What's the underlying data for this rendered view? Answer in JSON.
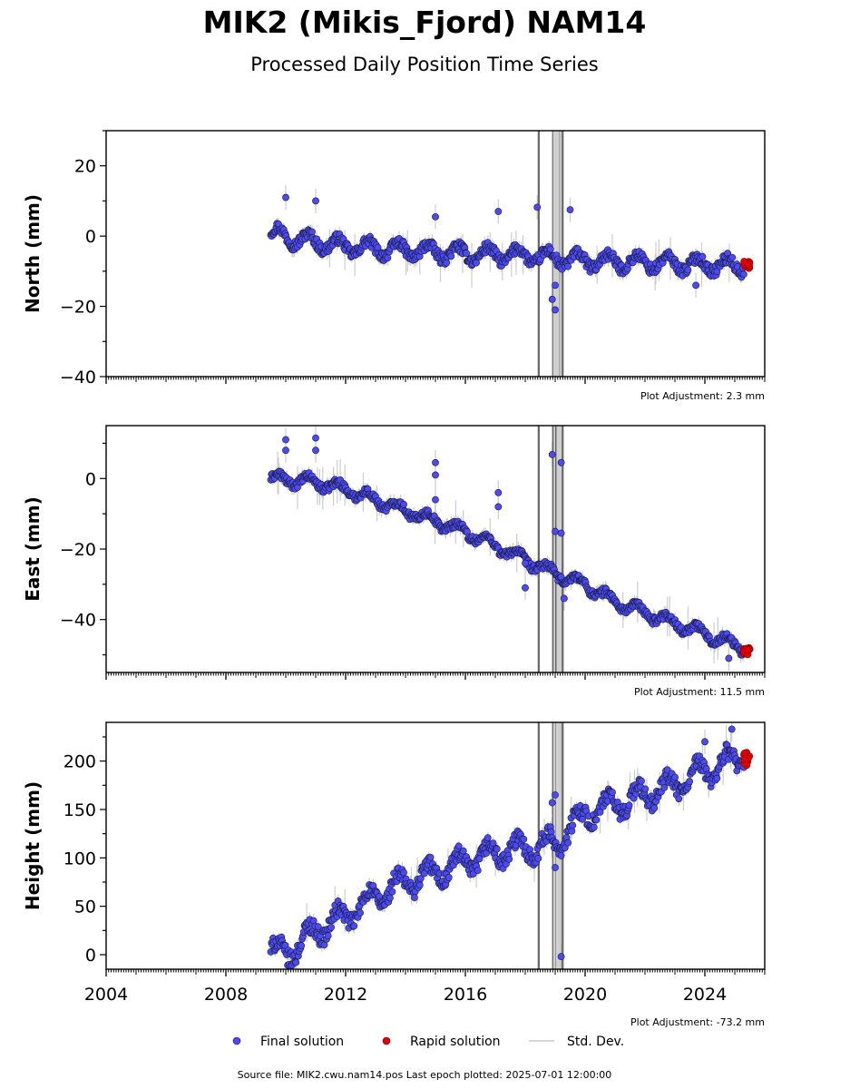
{
  "title": "MIK2 (Mikis_Fjord) NAM14",
  "subtitle": "Processed Daily Position Time Series",
  "source_text": "Source file: MIK2.cwu.nam14.pos  Last epoch plotted: 2025-07-01 12:00:00",
  "legend": {
    "final": "Final solution",
    "rapid": "Rapid solution",
    "std": "Std. Dev."
  },
  "colors": {
    "final": "#4b4bf0",
    "final_edge": "#1a1a40",
    "rapid": "#e00000",
    "std": "#cccccc",
    "events": "#666666"
  },
  "chart_data": [
    {
      "type": "scatter",
      "ylabel": "North (mm)",
      "adjustment": "Plot Adjustment: 2.3 mm",
      "xlim": [
        2004,
        2026
      ],
      "ylim": [
        -40,
        30
      ],
      "yticks": [
        -40,
        -20,
        0,
        20
      ],
      "ytick_labels": [
        "−40",
        "−20",
        "0",
        "20"
      ],
      "event_lines": [
        2018.45,
        2018.93,
        2019.03,
        2019.17,
        2019.25
      ],
      "final_trend": [
        [
          2009.5,
          1
        ],
        [
          2010.5,
          -1
        ],
        [
          2012,
          -3
        ],
        [
          2014,
          -4
        ],
        [
          2016,
          -5
        ],
        [
          2018,
          -5.5
        ],
        [
          2020,
          -7
        ],
        [
          2022,
          -7.5
        ],
        [
          2025.3,
          -8.5
        ]
      ],
      "final_wiggle": 2.5,
      "final_outliers": [
        [
          2010.0,
          11
        ],
        [
          2011.0,
          10
        ],
        [
          2015.0,
          5.5
        ],
        [
          2017.1,
          7
        ],
        [
          2018.4,
          8.2
        ],
        [
          2018.9,
          -18
        ],
        [
          2019.0,
          -21
        ],
        [
          2019.0,
          -14
        ],
        [
          2019.5,
          7.5
        ],
        [
          2023.7,
          -14
        ]
      ],
      "rapid_range": [
        2025.3,
        2025.5
      ],
      "rapid_values": [
        -9.5,
        -7
      ]
    },
    {
      "type": "scatter",
      "ylabel": "East (mm)",
      "adjustment": "Plot Adjustment: 11.5 mm",
      "xlim": [
        2004,
        2026
      ],
      "ylim": [
        -55,
        15
      ],
      "yticks": [
        -40,
        -20,
        0
      ],
      "ytick_labels": [
        "−40",
        "−20",
        "0"
      ],
      "event_lines": [
        2018.45,
        2018.93,
        2019.03,
        2019.17,
        2019.25
      ],
      "final_trend": [
        [
          2009.5,
          0
        ],
        [
          2011,
          -1
        ],
        [
          2012,
          -3
        ],
        [
          2013,
          -6
        ],
        [
          2014,
          -9
        ],
        [
          2015,
          -12
        ],
        [
          2016,
          -15
        ],
        [
          2017,
          -19
        ],
        [
          2018,
          -23
        ],
        [
          2019,
          -27
        ],
        [
          2020,
          -30
        ],
        [
          2021,
          -35
        ],
        [
          2022,
          -38
        ],
        [
          2023,
          -41
        ],
        [
          2024,
          -44
        ],
        [
          2025.3,
          -48
        ]
      ],
      "final_wiggle": 1.8,
      "final_outliers": [
        [
          2010.0,
          11
        ],
        [
          2010.0,
          8
        ],
        [
          2011.0,
          11.5
        ],
        [
          2011.0,
          8
        ],
        [
          2015.0,
          4.5
        ],
        [
          2015.0,
          1
        ],
        [
          2015.0,
          -6
        ],
        [
          2017.1,
          -4
        ],
        [
          2017.1,
          -8
        ],
        [
          2018.0,
          -31
        ],
        [
          2018.0,
          -24
        ],
        [
          2018.9,
          6.8
        ],
        [
          2019.0,
          -15
        ],
        [
          2019.2,
          4.5
        ],
        [
          2019.2,
          -15.5
        ],
        [
          2019.3,
          -34
        ],
        [
          2024.8,
          -51
        ]
      ],
      "rapid_range": [
        2025.3,
        2025.5
      ],
      "rapid_values": [
        -50,
        -48
      ]
    },
    {
      "type": "scatter",
      "ylabel": "Height (mm)",
      "adjustment": "Plot Adjustment: -73.2 mm",
      "xlim": [
        2004,
        2026
      ],
      "ylim": [
        -15,
        240
      ],
      "yticks": [
        0,
        50,
        100,
        150,
        200
      ],
      "ytick_labels": [
        "0",
        "50",
        "100",
        "150",
        "200"
      ],
      "xticks": [
        2004,
        2008,
        2012,
        2016,
        2020,
        2024
      ],
      "xtick_labels": [
        "2004",
        "2008",
        "2012",
        "2016",
        "2020",
        "2024"
      ],
      "event_lines": [
        2018.45,
        2018.93,
        2019.03,
        2019.17,
        2019.25
      ],
      "final_trend": [
        [
          2009.5,
          5
        ],
        [
          2010,
          0
        ],
        [
          2011,
          25
        ],
        [
          2012,
          40
        ],
        [
          2013,
          60
        ],
        [
          2014,
          75
        ],
        [
          2015,
          85
        ],
        [
          2016,
          95
        ],
        [
          2017,
          105
        ],
        [
          2018,
          110
        ],
        [
          2019,
          115
        ],
        [
          2020,
          145
        ],
        [
          2021,
          155
        ],
        [
          2022,
          165
        ],
        [
          2023,
          175
        ],
        [
          2024,
          190
        ],
        [
          2025.3,
          205
        ]
      ],
      "final_wiggle": 14,
      "final_outliers": [
        [
          2018.9,
          157
        ],
        [
          2019.0,
          165
        ],
        [
          2019.0,
          90
        ],
        [
          2019.2,
          -2
        ],
        [
          2024.0,
          220
        ],
        [
          2024.9,
          233
        ]
      ],
      "rapid_range": [
        2025.3,
        2025.5
      ],
      "rapid_values": [
        195,
        210
      ]
    }
  ]
}
